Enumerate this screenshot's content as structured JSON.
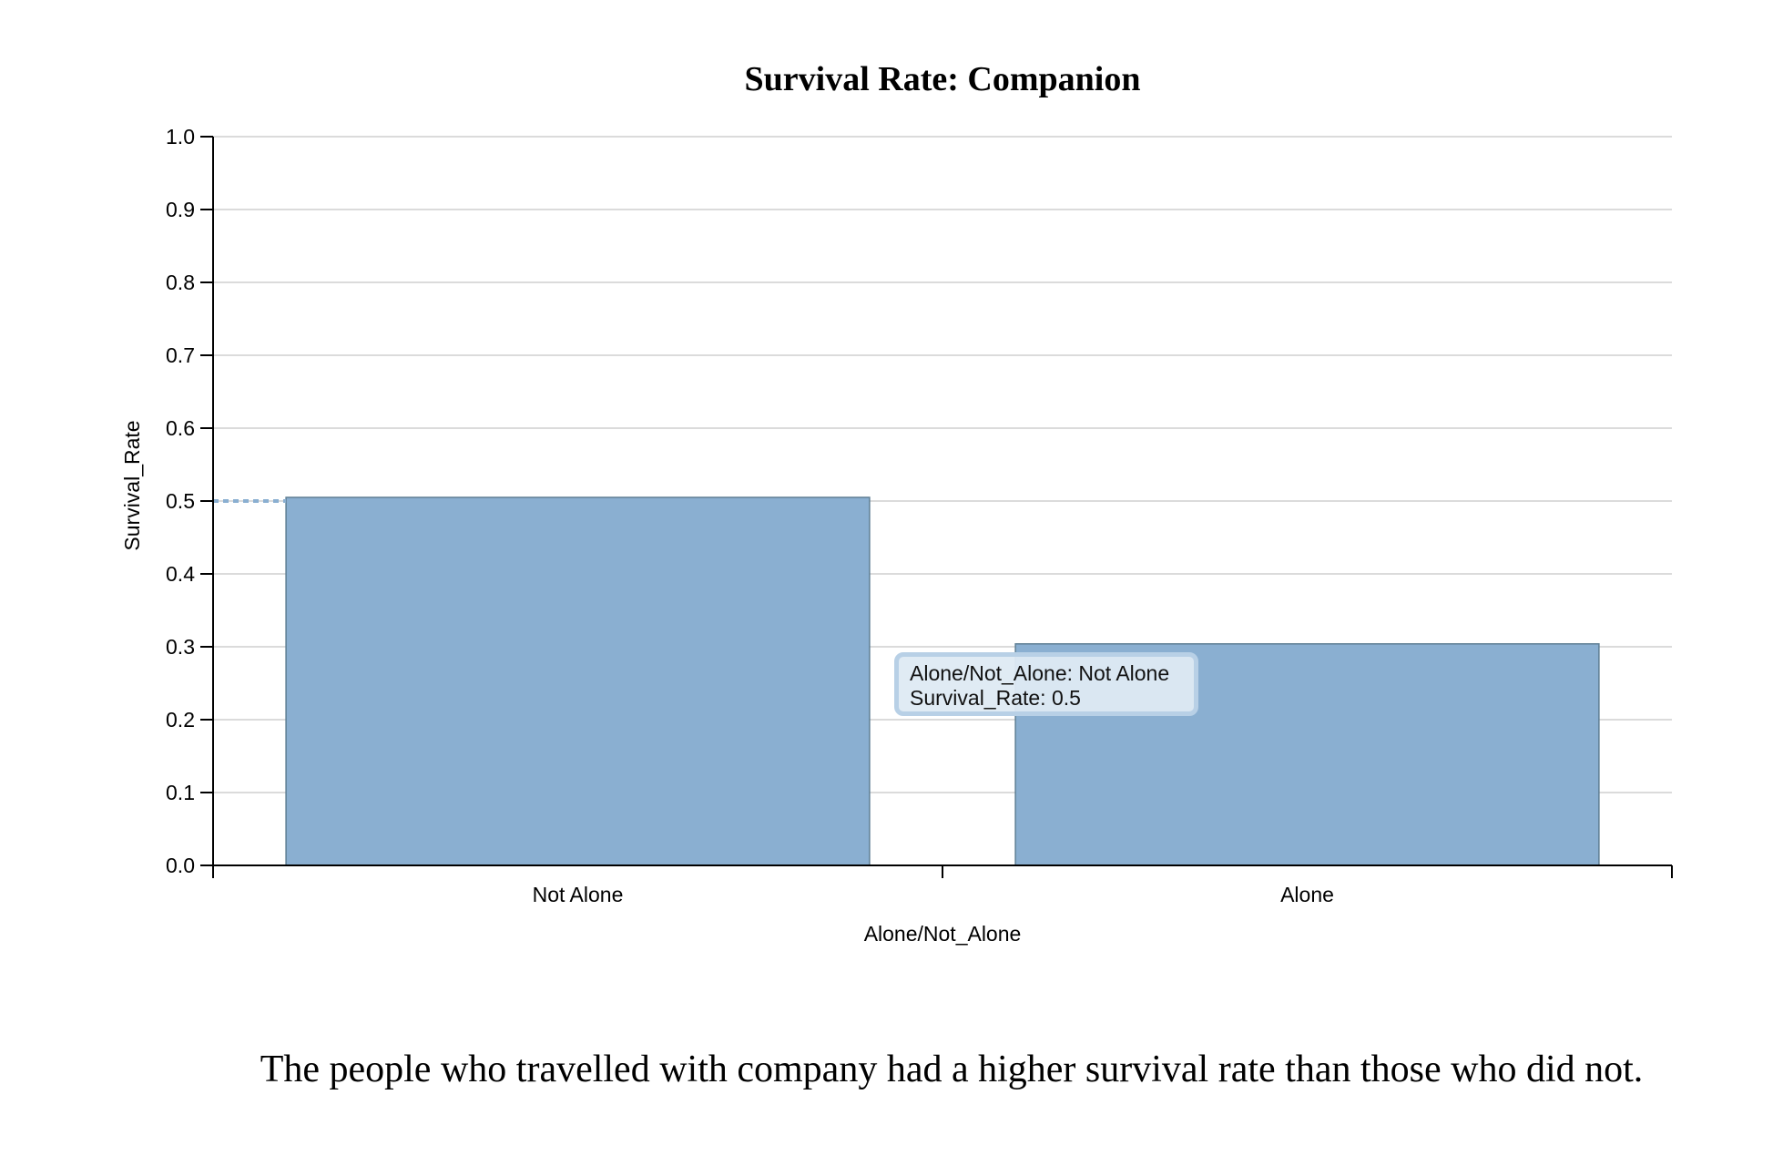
{
  "chart_data": {
    "type": "bar",
    "title": "Survival Rate: Companion",
    "xlabel": "Alone/Not_Alone",
    "ylabel": "Survival_Rate",
    "categories": [
      "Not Alone",
      "Alone"
    ],
    "values": [
      0.505,
      0.304
    ],
    "ylim": [
      0,
      1
    ],
    "yticks": [
      "0.0",
      "0.1",
      "0.2",
      "0.3",
      "0.4",
      "0.5",
      "0.6",
      "0.7",
      "0.8",
      "0.9",
      "1.0"
    ],
    "grid": true,
    "bar_color": "#8aafd1",
    "hover_guide_value": 0.5
  },
  "tooltip": {
    "line1": "Alone/Not_Alone: Not Alone",
    "line2": "Survival_Rate: 0.5"
  },
  "caption": "The people who travelled with company had a higher survival rate than those who did not."
}
